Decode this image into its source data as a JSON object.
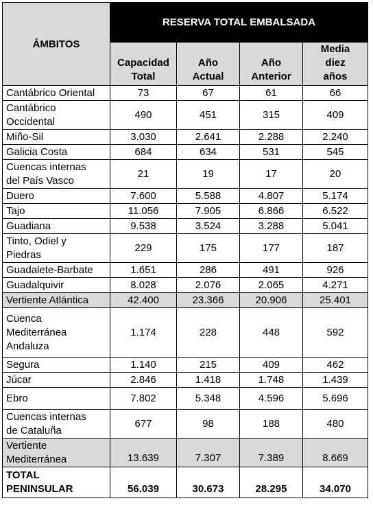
{
  "header": {
    "ambitos": "ÁMBITOS",
    "group": "RESERVA TOTAL EMBALSADA",
    "columns": [
      [
        "Capacidad",
        "Total"
      ],
      [
        "Año",
        "Actual"
      ],
      [
        "Año",
        "Anterior"
      ],
      [
        "Media",
        "diez",
        "años"
      ]
    ]
  },
  "rows": [
    {
      "name": [
        "Cantábrico Oriental"
      ],
      "values": [
        "73",
        "67",
        "61",
        "66"
      ]
    },
    {
      "name": [
        "Cantábrico",
        "Occidental"
      ],
      "values": [
        "490",
        "451",
        "315",
        "409"
      ]
    },
    {
      "name": [
        "Miño-Sil"
      ],
      "values": [
        "3.030",
        "2.641",
        "2.288",
        "2.240"
      ]
    },
    {
      "name": [
        "Galicia Costa"
      ],
      "values": [
        "684",
        "634",
        "531",
        "545"
      ]
    },
    {
      "name": [
        "Cuencas internas",
        "del País Vasco"
      ],
      "values": [
        "21",
        "19",
        "17",
        "20"
      ]
    },
    {
      "name": [
        "Duero"
      ],
      "values": [
        "7.600",
        "5.588",
        "4.807",
        "5.174"
      ]
    },
    {
      "name": [
        "Tajo"
      ],
      "values": [
        "11.056",
        "7.905",
        "6.866",
        "6.522"
      ]
    },
    {
      "name": [
        "Guadiana"
      ],
      "values": [
        "9.538",
        "3.524",
        "3.288",
        "5.041"
      ]
    },
    {
      "name": [
        "Tinto, Odiel y",
        "Piedras"
      ],
      "values": [
        "229",
        "175",
        "177",
        "187"
      ]
    },
    {
      "name": [
        "Guadalete-Barbate"
      ],
      "values": [
        "1.651",
        "286",
        "491",
        "926"
      ]
    },
    {
      "name": [
        "Guadalquivir"
      ],
      "values": [
        "8.028",
        "2.076",
        "2.065",
        "4.271"
      ]
    },
    {
      "name": [
        "Vertiente Atlántica"
      ],
      "values": [
        "42.400",
        "23.366",
        "20.906",
        "25.401"
      ],
      "subtotal": true
    },
    {
      "name": [
        "Cuenca",
        "Mediterránea",
        "Andaluza"
      ],
      "values": [
        "1.174",
        "228",
        "448",
        "592"
      ]
    },
    {
      "name": [
        "Segura"
      ],
      "values": [
        "1.140",
        "215",
        "409",
        "462"
      ]
    },
    {
      "name": [
        "Júcar"
      ],
      "values": [
        "2.846",
        "1.418",
        "1.748",
        "1.439"
      ]
    },
    {
      "name": [
        "Ebro"
      ],
      "values": [
        "7.802",
        "5.348",
        "4.596",
        "5.696"
      ]
    },
    {
      "name": [
        "Cuencas internas",
        "de Cataluña"
      ],
      "values": [
        "677",
        "98",
        "188",
        "480"
      ]
    },
    {
      "name": [
        "Vertiente",
        "Mediterránea"
      ],
      "values": [
        "13.639",
        "7.307",
        "7.389",
        "8.669"
      ],
      "subtotal": true,
      "bottom": true
    },
    {
      "name": [
        "TOTAL",
        "PENINSULAR"
      ],
      "values": [
        "56.039",
        "30.673",
        "28.295",
        "34.070"
      ],
      "total": true,
      "bottom": true
    }
  ]
}
